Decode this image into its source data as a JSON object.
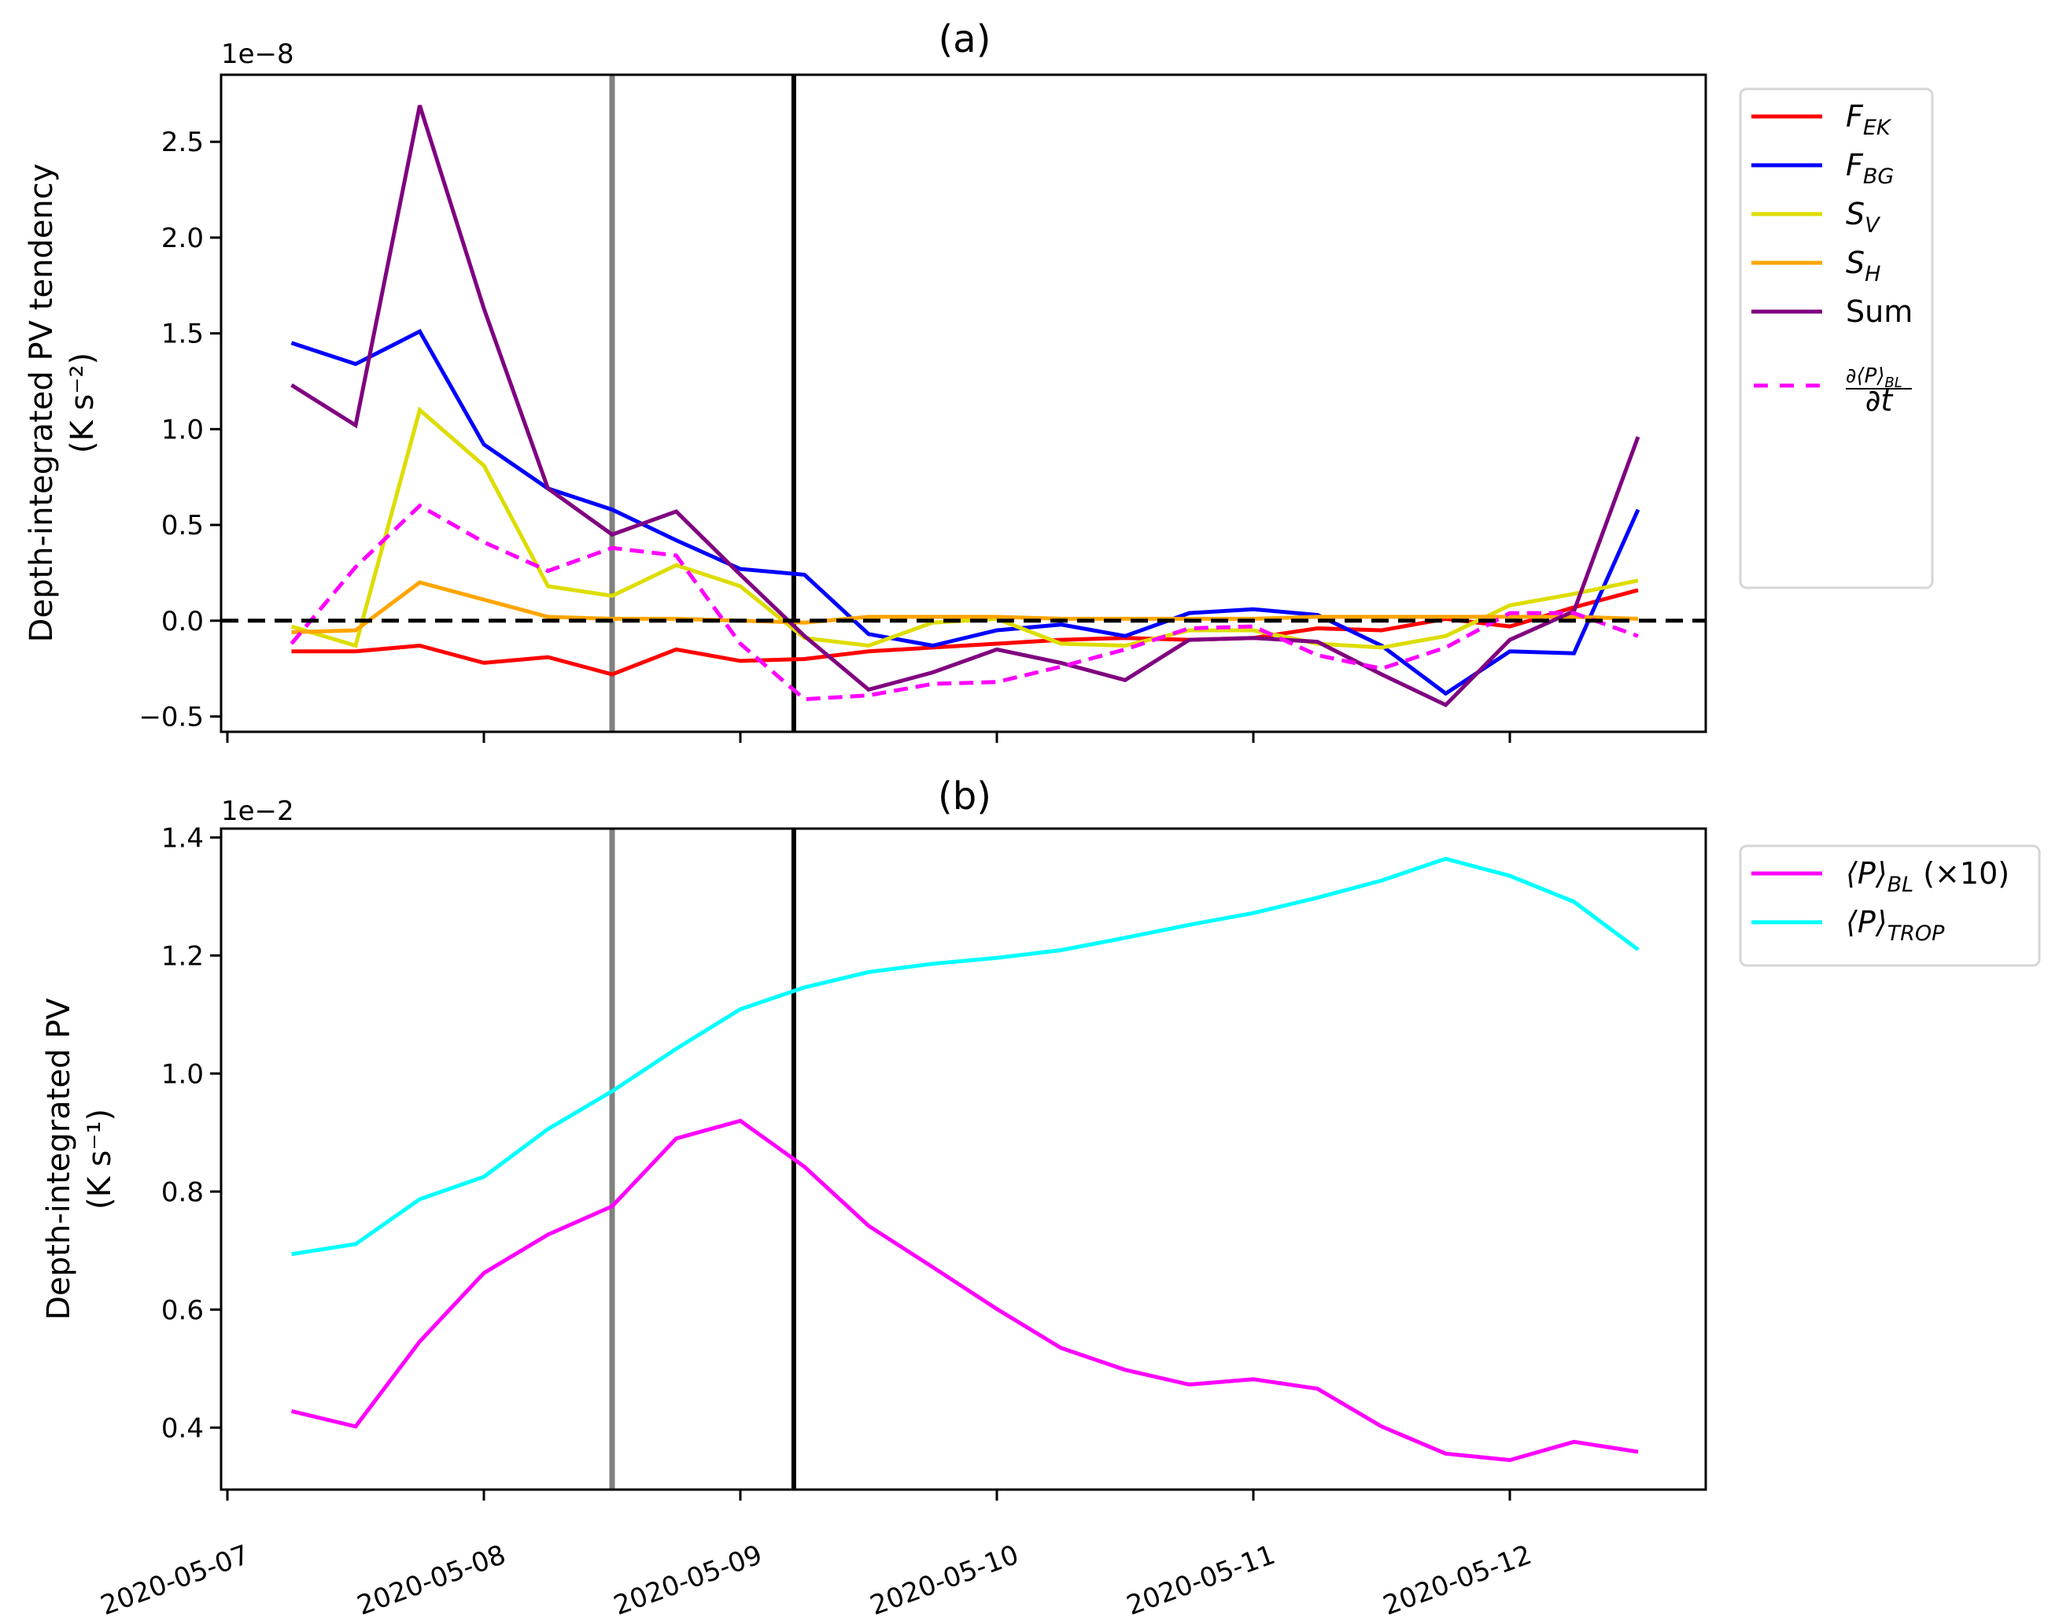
{
  "chart_data": [
    {
      "type": "line",
      "panel": "a",
      "title": "(a)",
      "ylabel_line1": "Depth-integrated PV tendency",
      "ylabel_line2": "(K s⁻²)",
      "offset_text": "1e−8",
      "ylim": [
        -0.58,
        2.85
      ],
      "yticks": [
        -0.5,
        0.0,
        0.5,
        1.0,
        1.5,
        2.0,
        2.5
      ],
      "ytick_labels": [
        "−0.5",
        "0.0",
        "0.5",
        "1.0",
        "1.5",
        "2.0",
        "2.5"
      ],
      "x_hours_from_2020_05_07": [
        6,
        12,
        18,
        24,
        30,
        36,
        42,
        48,
        54,
        60,
        66,
        72,
        78,
        84,
        90,
        96,
        102,
        108,
        114,
        120,
        126,
        132
      ],
      "zero_line": {
        "y": 0.0,
        "style": "dashed",
        "color": "#000000"
      },
      "vlines": [
        {
          "name": "grey-marker",
          "x_hours": 36,
          "color": "#808080"
        },
        {
          "name": "black-marker",
          "x_hours": 53,
          "color": "#000000"
        }
      ],
      "series": [
        {
          "name": "F_EK",
          "label_main": "F",
          "label_sub": "EK",
          "color": "#ff0000",
          "dash": false,
          "values": [
            -0.16,
            -0.16,
            -0.13,
            -0.22,
            -0.19,
            -0.28,
            -0.15,
            -0.21,
            -0.2,
            -0.16,
            -0.14,
            -0.12,
            -0.1,
            -0.09,
            -0.1,
            -0.09,
            -0.04,
            -0.05,
            0.01,
            -0.03,
            0.07,
            0.16
          ]
        },
        {
          "name": "F_BG",
          "label_main": "F",
          "label_sub": "BG",
          "color": "#0000ff",
          "dash": false,
          "values": [
            1.45,
            1.34,
            1.51,
            0.92,
            0.69,
            0.58,
            0.42,
            0.27,
            0.24,
            -0.07,
            -0.13,
            -0.05,
            -0.02,
            -0.08,
            0.04,
            0.06,
            0.03,
            -0.13,
            -0.38,
            -0.16,
            -0.17,
            0.58
          ]
        },
        {
          "name": "S_V",
          "label_main": "S",
          "label_sub": "V",
          "color": "#dddd00",
          "dash": false,
          "values": [
            -0.03,
            -0.13,
            1.1,
            0.81,
            0.18,
            0.13,
            0.29,
            0.18,
            -0.09,
            -0.13,
            -0.01,
            0.01,
            -0.12,
            -0.13,
            -0.05,
            -0.05,
            -0.12,
            -0.14,
            -0.08,
            0.08,
            0.14,
            0.21
          ]
        },
        {
          "name": "S_H",
          "label_main": "S",
          "label_sub": "H",
          "color": "#ffa500",
          "dash": false,
          "values": [
            -0.06,
            -0.05,
            0.2,
            0.11,
            0.02,
            0.01,
            0.01,
            0.0,
            -0.01,
            0.02,
            0.02,
            0.02,
            0.01,
            0.01,
            0.01,
            0.01,
            0.02,
            0.02,
            0.02,
            0.02,
            0.02,
            0.01
          ]
        },
        {
          "name": "Sum",
          "label_main": "Sum",
          "label_sub": "",
          "color": "#800080",
          "dash": false,
          "values": [
            1.23,
            1.02,
            2.69,
            1.63,
            0.69,
            0.45,
            0.57,
            0.24,
            -0.08,
            -0.36,
            -0.27,
            -0.15,
            -0.22,
            -0.31,
            -0.1,
            -0.09,
            -0.11,
            -0.28,
            -0.44,
            -0.1,
            0.05,
            0.96
          ]
        },
        {
          "name": "dP_BL/dt",
          "label_main": "∂⟨P⟩BL / ∂t",
          "label_sub": "",
          "color": "#ff00ff",
          "dash": true,
          "values": [
            -0.12,
            0.28,
            0.6,
            0.41,
            0.26,
            0.38,
            0.34,
            -0.12,
            -0.41,
            -0.39,
            -0.33,
            -0.32,
            -0.24,
            -0.15,
            -0.04,
            -0.03,
            -0.18,
            -0.25,
            -0.14,
            0.04,
            0.04,
            -0.08
          ]
        }
      ],
      "legend_location": "outside-upper-right"
    },
    {
      "type": "line",
      "panel": "b",
      "title": "(b)",
      "ylabel_line1": "Depth-integrated PV",
      "ylabel_line2": "(K s⁻¹)",
      "offset_text": "1e−2",
      "ylim": [
        0.295,
        1.415
      ],
      "yticks": [
        0.4,
        0.6,
        0.8,
        1.0,
        1.2,
        1.4
      ],
      "ytick_labels": [
        "0.4",
        "0.6",
        "0.8",
        "1.0",
        "1.2",
        "1.4"
      ],
      "x_hours_from_2020_05_07": [
        6,
        12,
        18,
        24,
        30,
        36,
        42,
        48,
        54,
        60,
        66,
        72,
        78,
        84,
        90,
        96,
        102,
        108,
        114,
        120,
        126,
        132
      ],
      "xtick_labels": [
        "2020-05-07",
        "2020-05-08",
        "2020-05-09",
        "2020-05-10",
        "2020-05-11",
        "2020-05-12"
      ],
      "xtick_hours": [
        0,
        24,
        48,
        72,
        96,
        120
      ],
      "vlines": [
        {
          "name": "grey-marker",
          "x_hours": 36,
          "color": "#808080"
        },
        {
          "name": "black-marker",
          "x_hours": 53,
          "color": "#000000"
        }
      ],
      "series": [
        {
          "name": "P_BL_x10",
          "label_main": "⟨P⟩",
          "label_sub": "BL",
          "label_suffix": " (×10)",
          "color": "#ff00ff",
          "dash": false,
          "values": [
            0.428,
            0.402,
            0.546,
            0.662,
            0.727,
            0.775,
            0.89,
            0.92,
            0.842,
            0.742,
            0.672,
            0.601,
            0.535,
            0.498,
            0.473,
            0.482,
            0.466,
            0.402,
            0.356,
            0.345,
            0.376,
            0.359
          ]
        },
        {
          "name": "P_TROP",
          "label_main": "⟨P⟩",
          "label_sub": "TROP",
          "label_suffix": "",
          "color": "#00ffff",
          "dash": false,
          "values": [
            0.694,
            0.711,
            0.787,
            0.825,
            0.906,
            0.97,
            1.042,
            1.109,
            1.146,
            1.172,
            1.186,
            1.196,
            1.209,
            1.23,
            1.252,
            1.272,
            1.298,
            1.327,
            1.364,
            1.335,
            1.291,
            1.21
          ]
        }
      ],
      "legend_location": "outside-upper-right"
    }
  ]
}
